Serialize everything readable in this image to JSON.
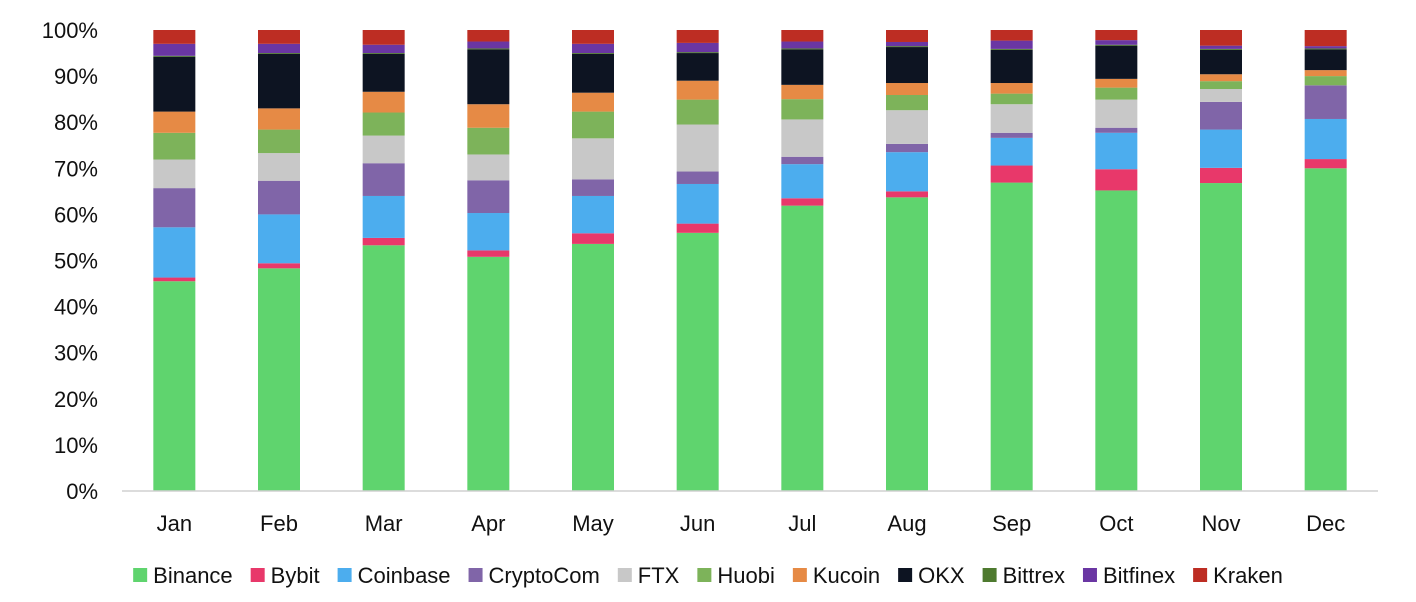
{
  "chart_data": {
    "type": "bar",
    "stacked": true,
    "percent": true,
    "title": "",
    "xlabel": "",
    "ylabel": "",
    "ylim": [
      0,
      100
    ],
    "yticks": [
      "0%",
      "10%",
      "20%",
      "30%",
      "40%",
      "50%",
      "60%",
      "70%",
      "80%",
      "90%",
      "100%"
    ],
    "categories": [
      "Jan",
      "Feb",
      "Mar",
      "Apr",
      "May",
      "Jun",
      "Jul",
      "Aug",
      "Sep",
      "Oct",
      "Nov",
      "Dec"
    ],
    "grid": false,
    "legend_position": "bottom",
    "series": [
      {
        "name": "Binance",
        "color": "#5fd46e",
        "values": [
          45.5,
          48.3,
          53.3,
          50.8,
          53.6,
          56.0,
          61.9,
          63.7,
          66.9,
          65.2,
          66.8,
          70.0
        ]
      },
      {
        "name": "Bybit",
        "color": "#e8386a",
        "values": [
          0.8,
          1.1,
          1.6,
          1.4,
          2.3,
          2.0,
          1.6,
          1.3,
          3.7,
          4.6,
          3.3,
          2.0
        ]
      },
      {
        "name": "Coinbase",
        "color": "#4cadee",
        "values": [
          10.9,
          10.6,
          9.1,
          8.1,
          8.1,
          8.6,
          7.4,
          8.5,
          6.0,
          7.9,
          8.3,
          8.7
        ]
      },
      {
        "name": "CryptoCom",
        "color": "#8065a8",
        "values": [
          8.5,
          7.3,
          7.1,
          7.1,
          3.6,
          2.7,
          1.6,
          1.8,
          1.1,
          1.1,
          6.0,
          7.3
        ]
      },
      {
        "name": "FTX",
        "color": "#c8c8c8",
        "values": [
          6.2,
          6.0,
          6.0,
          5.6,
          8.9,
          10.2,
          8.1,
          7.3,
          6.2,
          6.1,
          2.8,
          0.0
        ]
      },
      {
        "name": "Huobi",
        "color": "#7db35a",
        "values": [
          5.8,
          5.1,
          5.0,
          5.8,
          5.8,
          5.4,
          4.4,
          3.3,
          2.3,
          2.6,
          1.7,
          2.0
        ]
      },
      {
        "name": "Kucoin",
        "color": "#e68a45",
        "values": [
          4.6,
          4.6,
          4.5,
          5.1,
          4.1,
          4.1,
          3.1,
          2.6,
          2.3,
          1.9,
          1.5,
          1.3
        ]
      },
      {
        "name": "OKX",
        "color": "#0d1422",
        "values": [
          11.9,
          11.8,
          8.2,
          11.9,
          8.4,
          6.0,
          7.7,
          7.8,
          7.2,
          7.2,
          5.3,
          4.5
        ]
      },
      {
        "name": "Bittrex",
        "color": "#4e7a2f",
        "values": [
          0.2,
          0.2,
          0.2,
          0.2,
          0.2,
          0.2,
          0.2,
          0.2,
          0.2,
          0.2,
          0.2,
          0.2
        ]
      },
      {
        "name": "Bitfinex",
        "color": "#6a36a3",
        "values": [
          2.6,
          2.0,
          1.8,
          1.5,
          2.0,
          2.0,
          1.5,
          0.9,
          1.8,
          1.0,
          0.7,
          0.5
        ]
      },
      {
        "name": "Kraken",
        "color": "#bd2d23",
        "values": [
          3.0,
          3.0,
          3.2,
          2.5,
          3.0,
          2.8,
          2.5,
          2.6,
          2.3,
          2.2,
          3.4,
          3.5
        ]
      }
    ]
  }
}
